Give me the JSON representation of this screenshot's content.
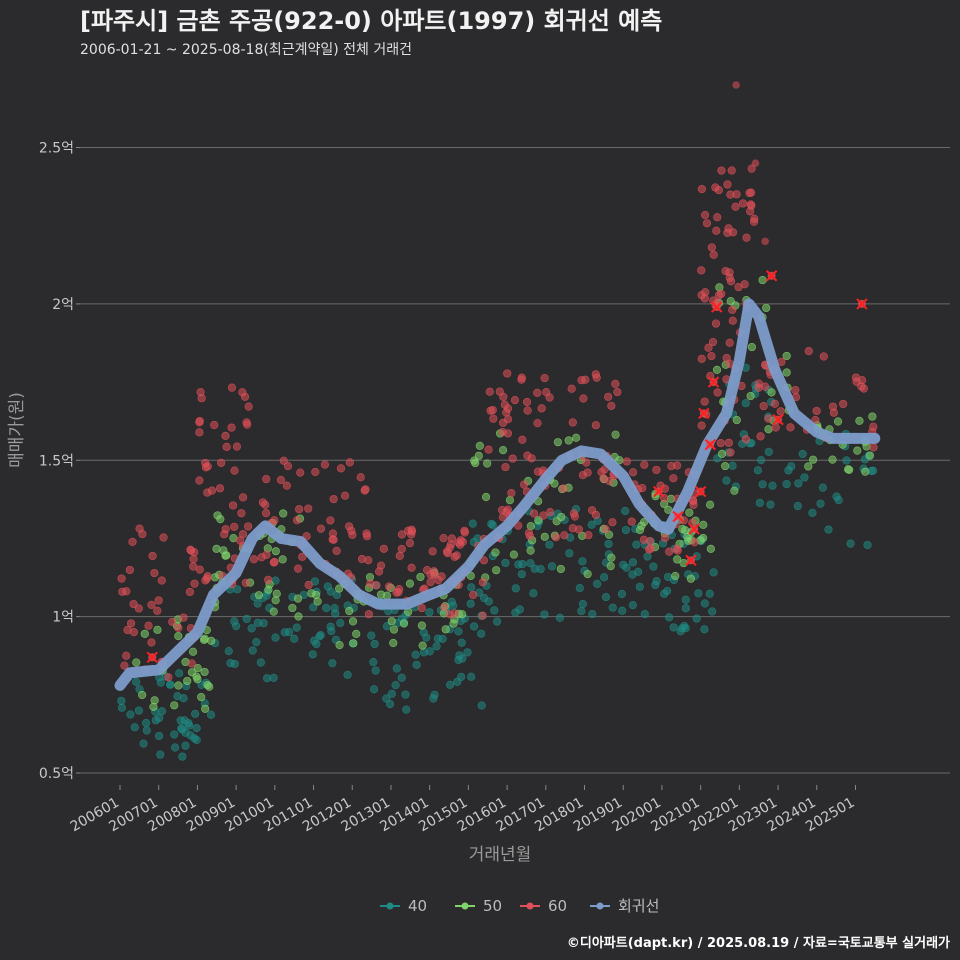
{
  "header": {
    "title": "[파주시] 금촌 주공(922-0) 아파트(1997) 회귀선 예측",
    "subtitle": "2006-01-21 ~ 2025-08-18(최근계약일) 전체 거래건"
  },
  "footer": {
    "caption": "©디아파트(dapt.kr) / 2025.08.19 / 자료=국토교통부 실거래가"
  },
  "colors": {
    "background": "#2b2a2c",
    "s40": "#1f8a84",
    "s50": "#7fd46b",
    "s60": "#e0505a",
    "regression": "#7d9ccb",
    "highlight": "#ff2020"
  },
  "chart_data": {
    "type": "scatter",
    "xlabel": "거래년월",
    "ylabel": "매매가(원)",
    "x_range": [
      "2006-01",
      "2025-08"
    ],
    "ylim": [
      0.5,
      2.7
    ],
    "y_ticks": [
      0.5,
      1,
      1.5,
      2,
      2.5
    ],
    "y_tick_labels": [
      "0.5억",
      "1억",
      "1.5억",
      "2억",
      "2.5억"
    ],
    "x_ticks": [
      "200601",
      "200701",
      "200801",
      "200901",
      "201001",
      "201101",
      "201201",
      "201301",
      "201401",
      "201501",
      "201601",
      "201701",
      "201801",
      "201901",
      "202001",
      "202101",
      "202201",
      "202301",
      "202401",
      "202501"
    ],
    "grid": "horizontal",
    "legend_position": "bottom",
    "series": [
      {
        "name": "40",
        "description": "scatter of trades, area 40",
        "clusters": [
          {
            "start": "2006-01",
            "end": "2008-06",
            "low": 0.55,
            "high": 0.82,
            "n": 45
          },
          {
            "start": "2008-06",
            "end": "2012-12",
            "low": 0.8,
            "high": 1.12,
            "n": 60
          },
          {
            "start": "2012-06",
            "end": "2015-06",
            "low": 0.7,
            "high": 1.05,
            "n": 55
          },
          {
            "start": "2015-01",
            "end": "2019-06",
            "low": 0.98,
            "high": 1.35,
            "n": 70
          },
          {
            "start": "2019-06",
            "end": "2021-06",
            "low": 0.95,
            "high": 1.3,
            "n": 40
          },
          {
            "start": "2021-06",
            "end": "2022-12",
            "low": 1.35,
            "high": 1.8,
            "n": 30
          },
          {
            "start": "2023-01",
            "end": "2025-07",
            "low": 1.2,
            "high": 1.6,
            "n": 25
          }
        ]
      },
      {
        "name": "50",
        "description": "scatter of trades, area 50",
        "clusters": [
          {
            "start": "2006-06",
            "end": "2008-06",
            "low": 0.7,
            "high": 1.0,
            "n": 30
          },
          {
            "start": "2008-06",
            "end": "2011-06",
            "low": 1.0,
            "high": 1.35,
            "n": 40
          },
          {
            "start": "2011-06",
            "end": "2014-12",
            "low": 0.9,
            "high": 1.15,
            "n": 35
          },
          {
            "start": "2015-01",
            "end": "2018-12",
            "low": 1.1,
            "high": 1.6,
            "n": 45
          },
          {
            "start": "2019-06",
            "end": "2021-06",
            "low": 1.1,
            "high": 1.4,
            "n": 30
          },
          {
            "start": "2021-06",
            "end": "2023-06",
            "low": 1.4,
            "high": 2.1,
            "n": 25
          },
          {
            "start": "2023-06",
            "end": "2025-07",
            "low": 1.45,
            "high": 1.65,
            "n": 20
          }
        ]
      },
      {
        "name": "60",
        "description": "scatter of trades, area 60",
        "clusters": [
          {
            "start": "2006-01",
            "end": "2008-01",
            "low": 0.8,
            "high": 1.3,
            "n": 40
          },
          {
            "start": "2008-01",
            "end": "2009-06",
            "low": 1.1,
            "high": 1.75,
            "n": 45
          },
          {
            "start": "2009-06",
            "end": "2012-06",
            "low": 1.1,
            "high": 1.5,
            "n": 55
          },
          {
            "start": "2012-06",
            "end": "2015-06",
            "low": 1.0,
            "high": 1.3,
            "n": 60
          },
          {
            "start": "2015-06",
            "end": "2018-12",
            "low": 1.25,
            "high": 1.78,
            "n": 90
          },
          {
            "start": "2019-01",
            "end": "2020-12",
            "low": 1.2,
            "high": 1.5,
            "n": 35
          },
          {
            "start": "2021-01",
            "end": "2022-06",
            "low": 1.5,
            "high": 2.48,
            "n": 70
          },
          {
            "start": "2022-06",
            "end": "2025-07",
            "low": 1.5,
            "high": 1.85,
            "n": 35
          }
        ],
        "outliers": [
          {
            "x": "2021-12",
            "y": 2.7
          },
          {
            "x": "2022-06",
            "y": 2.45
          },
          {
            "x": "2022-09",
            "y": 2.2
          }
        ]
      },
      {
        "name": "회귀선",
        "type": "line",
        "points": [
          {
            "x": "2006-01",
            "y": 0.78
          },
          {
            "x": "2006-04",
            "y": 0.82
          },
          {
            "x": "2007-01",
            "y": 0.83
          },
          {
            "x": "2007-06",
            "y": 0.88
          },
          {
            "x": "2008-01",
            "y": 0.95
          },
          {
            "x": "2008-06",
            "y": 1.07
          },
          {
            "x": "2009-01",
            "y": 1.14
          },
          {
            "x": "2009-06",
            "y": 1.25
          },
          {
            "x": "2009-10",
            "y": 1.29
          },
          {
            "x": "2010-03",
            "y": 1.25
          },
          {
            "x": "2010-09",
            "y": 1.24
          },
          {
            "x": "2011-03",
            "y": 1.17
          },
          {
            "x": "2011-09",
            "y": 1.13
          },
          {
            "x": "2012-03",
            "y": 1.07
          },
          {
            "x": "2012-09",
            "y": 1.04
          },
          {
            "x": "2013-06",
            "y": 1.04
          },
          {
            "x": "2014-01",
            "y": 1.07
          },
          {
            "x": "2014-06",
            "y": 1.09
          },
          {
            "x": "2015-01",
            "y": 1.16
          },
          {
            "x": "2015-06",
            "y": 1.23
          },
          {
            "x": "2016-01",
            "y": 1.29
          },
          {
            "x": "2016-06",
            "y": 1.35
          },
          {
            "x": "2017-01",
            "y": 1.44
          },
          {
            "x": "2017-06",
            "y": 1.5
          },
          {
            "x": "2017-12",
            "y": 1.53
          },
          {
            "x": "2018-06",
            "y": 1.52
          },
          {
            "x": "2019-01",
            "y": 1.45
          },
          {
            "x": "2019-06",
            "y": 1.36
          },
          {
            "x": "2019-12",
            "y": 1.29
          },
          {
            "x": "2020-03",
            "y": 1.28
          },
          {
            "x": "2020-09",
            "y": 1.4
          },
          {
            "x": "2021-03",
            "y": 1.55
          },
          {
            "x": "2021-09",
            "y": 1.65
          },
          {
            "x": "2022-01",
            "y": 1.82
          },
          {
            "x": "2022-04",
            "y": 2.0
          },
          {
            "x": "2022-07",
            "y": 1.96
          },
          {
            "x": "2022-12",
            "y": 1.79
          },
          {
            "x": "2023-06",
            "y": 1.65
          },
          {
            "x": "2024-01",
            "y": 1.59
          },
          {
            "x": "2024-06",
            "y": 1.57
          },
          {
            "x": "2025-01",
            "y": 1.57
          },
          {
            "x": "2025-07",
            "y": 1.57
          }
        ]
      }
    ],
    "highlighted_trades": [
      {
        "x": "2006-11",
        "y": 0.87
      },
      {
        "x": "2019-12",
        "y": 1.4
      },
      {
        "x": "2020-06",
        "y": 1.32
      },
      {
        "x": "2020-10",
        "y": 1.18
      },
      {
        "x": "2020-11",
        "y": 1.28
      },
      {
        "x": "2021-01",
        "y": 1.4
      },
      {
        "x": "2021-02",
        "y": 1.65
      },
      {
        "x": "2021-04",
        "y": 1.55
      },
      {
        "x": "2021-05",
        "y": 1.75
      },
      {
        "x": "2021-06",
        "y": 1.99
      },
      {
        "x": "2022-11",
        "y": 2.09
      },
      {
        "x": "2023-01",
        "y": 1.63
      },
      {
        "x": "2025-03",
        "y": 2.0
      }
    ],
    "legend": [
      "40",
      "50",
      "60",
      "회귀선"
    ]
  }
}
